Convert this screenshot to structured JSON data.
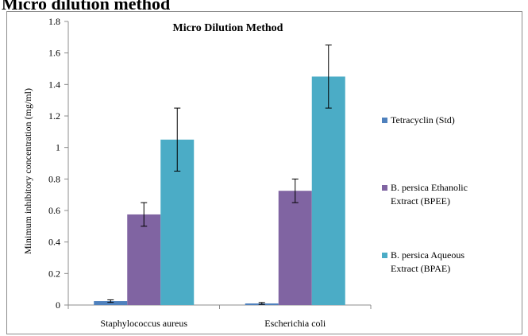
{
  "page": {
    "heading": "Micro dilution method"
  },
  "chart_data": {
    "type": "bar",
    "title": "Micro Dilution Method",
    "xlabel": "",
    "ylabel": "Minimum inhibitory concentration (mg/ml)",
    "ylim": [
      0,
      1.8
    ],
    "yticks": [
      0,
      0.2,
      0.4,
      0.6,
      0.8,
      1,
      1.2,
      1.4,
      1.6,
      1.8
    ],
    "ytick_labels": [
      "0",
      "0.2",
      "0.4",
      "0.6",
      "0.8",
      "1",
      "1.2",
      "1.4",
      "1.6",
      "1.8"
    ],
    "grid": false,
    "legend_position": "right",
    "categories": [
      "Staphylococcus aureus",
      "Escherichia coli"
    ],
    "series": [
      {
        "name": "Tetracyclin (Std)",
        "legend_lines": [
          "Tetracyclin (Std)"
        ],
        "color": "#4f81bd",
        "values": [
          0.025,
          0.01
        ],
        "errors": [
          0.008,
          0.006
        ]
      },
      {
        "name": "B. persica Ethanolic Extract (BPEE)",
        "legend_lines": [
          "B. persica Ethanolic",
          "Extract (BPEE)"
        ],
        "color": "#8064a2",
        "values": [
          0.575,
          0.725
        ],
        "errors": [
          0.075,
          0.075
        ]
      },
      {
        "name": "B. persica Aqueous Extract (BPAE)",
        "legend_lines": [
          "B. persica Aqueous",
          "Extract (BPAE)"
        ],
        "color": "#4bacc6",
        "values": [
          1.05,
          1.45
        ],
        "errors": [
          0.2,
          0.2
        ]
      }
    ]
  }
}
